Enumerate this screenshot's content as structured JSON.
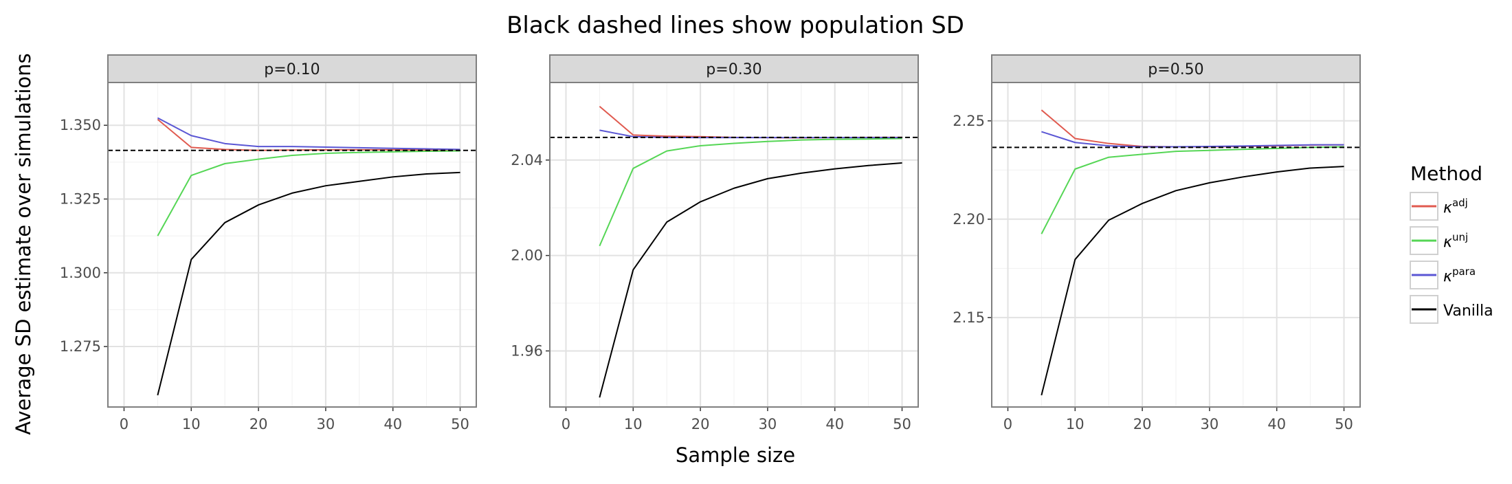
{
  "chart_data": {
    "type": "line",
    "title": "Black dashed lines show population SD",
    "xlabel": "Sample size",
    "ylabel": "Average SD estimate over simulations",
    "legend": {
      "title": "Method",
      "placement": "right",
      "entries": [
        {
          "base": "κ",
          "sup": "adj",
          "color": "#E05A4F"
        },
        {
          "base": "κ",
          "sup": "unj",
          "color": "#55D655"
        },
        {
          "base": "κ",
          "sup": "para",
          "color": "#5A56D4"
        },
        {
          "base": "Vanilla",
          "sup": "",
          "color": "#000000"
        }
      ]
    },
    "x": [
      5,
      10,
      15,
      20,
      25,
      30,
      35,
      40,
      45,
      50
    ],
    "xticks": [
      0,
      10,
      20,
      30,
      40,
      50
    ],
    "xtick_labels": [
      "0",
      "10",
      "20",
      "30",
      "40",
      "50"
    ],
    "xlim": [
      -2.4,
      52.4
    ],
    "grid": true,
    "panels": [
      {
        "strip": "p=0.10",
        "ylim": [
          1.2545,
          1.3645
        ],
        "yticks": [
          1.275,
          1.3,
          1.325,
          1.35
        ],
        "ytick_labels": [
          "1.275",
          "1.300",
          "1.325",
          "1.350"
        ],
        "reference_sd": 1.3415,
        "series": [
          {
            "key": "adj",
            "values": [
              1.352,
              1.3425,
              1.3418,
              1.3415,
              1.3416,
              1.3417,
              1.3417,
              1.3417,
              1.3416,
              1.3415
            ]
          },
          {
            "key": "unj",
            "values": [
              1.3125,
              1.333,
              1.337,
              1.3385,
              1.3398,
              1.3405,
              1.3408,
              1.341,
              1.3412,
              1.3413
            ]
          },
          {
            "key": "para",
            "values": [
              1.3525,
              1.3465,
              1.3438,
              1.3428,
              1.3428,
              1.3426,
              1.3424,
              1.3422,
              1.342,
              1.3418
            ]
          },
          {
            "key": "vanilla",
            "values": [
              1.2585,
              1.3045,
              1.317,
              1.323,
              1.327,
              1.3295,
              1.331,
              1.3325,
              1.3335,
              1.334
            ]
          }
        ]
      },
      {
        "strip": "p=0.30",
        "ylim": [
          1.9365,
          2.0725
        ],
        "yticks": [
          1.96,
          2.0,
          2.04
        ],
        "ytick_labels": [
          "1.96",
          "2.00",
          "2.04"
        ],
        "reference_sd": 2.0495,
        "series": [
          {
            "key": "adj",
            "values": [
              2.0625,
              2.0505,
              2.05,
              2.0498,
              2.0495,
              2.0494,
              2.0493,
              2.0494,
              2.0495,
              2.0495
            ]
          },
          {
            "key": "unj",
            "values": [
              2.004,
              2.0365,
              2.0438,
              2.046,
              2.047,
              2.0478,
              2.0484,
              2.0487,
              2.0488,
              2.049
            ]
          },
          {
            "key": "para",
            "values": [
              2.0525,
              2.0498,
              2.0495,
              2.0494,
              2.0494,
              2.0494,
              2.0494,
              2.0494,
              2.0494,
              2.0494
            ]
          },
          {
            "key": "vanilla",
            "values": [
              1.9405,
              1.994,
              2.014,
              2.0225,
              2.0282,
              2.0322,
              2.0345,
              2.0363,
              2.0377,
              2.0388
            ]
          }
        ]
      },
      {
        "strip": "p=0.50",
        "ylim": [
          2.1045,
          2.2695
        ],
        "yticks": [
          2.15,
          2.2,
          2.25
        ],
        "ytick_labels": [
          "2.15",
          "2.20",
          "2.25"
        ],
        "reference_sd": 2.2365,
        "series": [
          {
            "key": "adj",
            "values": [
              2.2555,
              2.241,
              2.2385,
              2.237,
              2.2368,
              2.2368,
              2.237,
              2.2373,
              2.2377,
              2.2378
            ]
          },
          {
            "key": "unj",
            "values": [
              2.1925,
              2.2255,
              2.2315,
              2.233,
              2.2345,
              2.235,
              2.2355,
              2.236,
              2.2365,
              2.2368
            ]
          },
          {
            "key": "para",
            "values": [
              2.2445,
              2.239,
              2.2373,
              2.2368,
              2.2368,
              2.237,
              2.2372,
              2.2375,
              2.2378,
              2.2378
            ]
          },
          {
            "key": "vanilla",
            "values": [
              2.1105,
              2.1795,
              2.1995,
              2.208,
              2.2145,
              2.2185,
              2.2215,
              2.224,
              2.226,
              2.2268
            ]
          }
        ]
      }
    ]
  }
}
